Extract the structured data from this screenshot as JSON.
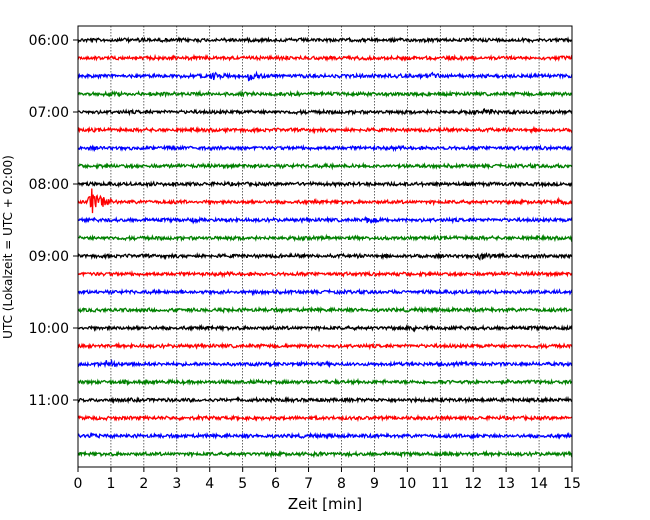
{
  "chart_data": {
    "type": "line",
    "title": "",
    "xlabel": "Zeit  [min]",
    "ylabel": "UTC (Lokalzeit = UTC + 02:00)",
    "xlim": [
      0,
      15
    ],
    "x_ticks": [
      0,
      1,
      2,
      3,
      4,
      5,
      6,
      7,
      8,
      9,
      10,
      11,
      12,
      13,
      14,
      15
    ],
    "y_tick_labels": [
      "06:00",
      "07:00",
      "08:00",
      "09:00",
      "10:00",
      "11:00"
    ],
    "grid": "vertical, dotted",
    "trace_interval_min": 15,
    "trace_colors": [
      "#000000",
      "#ff0000",
      "#0000ff",
      "#008000"
    ],
    "traces": [
      {
        "start": "06:00",
        "color": "#000000",
        "events": [
          {
            "t": 1.3,
            "amp": 0.5
          }
        ]
      },
      {
        "start": "06:15",
        "color": "#ff0000",
        "events": []
      },
      {
        "start": "06:30",
        "color": "#0000ff",
        "events": [
          {
            "t": 4.1,
            "amp": 1.0
          },
          {
            "t": 5.2,
            "amp": 1.0
          },
          {
            "t": 10.7,
            "amp": 0.9
          }
        ]
      },
      {
        "start": "06:45",
        "color": "#008000",
        "events": []
      },
      {
        "start": "07:00",
        "color": "#000000",
        "events": [
          {
            "t": 12.3,
            "amp": 0.9
          }
        ]
      },
      {
        "start": "07:15",
        "color": "#ff0000",
        "events": []
      },
      {
        "start": "07:30",
        "color": "#0000ff",
        "events": []
      },
      {
        "start": "07:45",
        "color": "#008000",
        "events": [
          {
            "t": 7.7,
            "amp": 0.5
          },
          {
            "t": 14.4,
            "amp": 0.5
          }
        ]
      },
      {
        "start": "08:00",
        "color": "#000000",
        "events": [
          {
            "t": 2.1,
            "amp": 0.5
          }
        ]
      },
      {
        "start": "08:15",
        "color": "#ff0000",
        "events": [
          {
            "t": 0.4,
            "amp": 2.6
          },
          {
            "t": 14.6,
            "amp": 0.8
          }
        ]
      },
      {
        "start": "08:30",
        "color": "#0000ff",
        "events": [
          {
            "t": 3.5,
            "amp": 0.5
          },
          {
            "t": 8.8,
            "amp": 0.8
          }
        ]
      },
      {
        "start": "08:45",
        "color": "#008000",
        "events": []
      },
      {
        "start": "09:00",
        "color": "#000000",
        "events": [
          {
            "t": 12.2,
            "amp": 1.0
          }
        ]
      },
      {
        "start": "09:15",
        "color": "#ff0000",
        "events": []
      },
      {
        "start": "09:30",
        "color": "#0000ff",
        "events": [
          {
            "t": 4.3,
            "amp": 0.4
          }
        ]
      },
      {
        "start": "09:45",
        "color": "#008000",
        "events": []
      },
      {
        "start": "10:00",
        "color": "#000000",
        "events": [
          {
            "t": 10.2,
            "amp": 0.5
          }
        ]
      },
      {
        "start": "10:15",
        "color": "#ff0000",
        "events": []
      },
      {
        "start": "10:30",
        "color": "#0000ff",
        "events": [
          {
            "t": 0.9,
            "amp": 1.0
          }
        ]
      },
      {
        "start": "10:45",
        "color": "#008000",
        "events": [
          {
            "t": 11.0,
            "amp": 0.5
          }
        ]
      },
      {
        "start": "11:00",
        "color": "#000000",
        "events": []
      },
      {
        "start": "11:15",
        "color": "#ff0000",
        "events": []
      },
      {
        "start": "11:30",
        "color": "#0000ff",
        "events": [
          {
            "t": 0.4,
            "amp": 0.6
          },
          {
            "t": 11.9,
            "amp": 0.5
          }
        ]
      },
      {
        "start": "11:45",
        "color": "#008000",
        "events": [
          {
            "t": 7.1,
            "amp": 0.5
          }
        ]
      }
    ]
  }
}
